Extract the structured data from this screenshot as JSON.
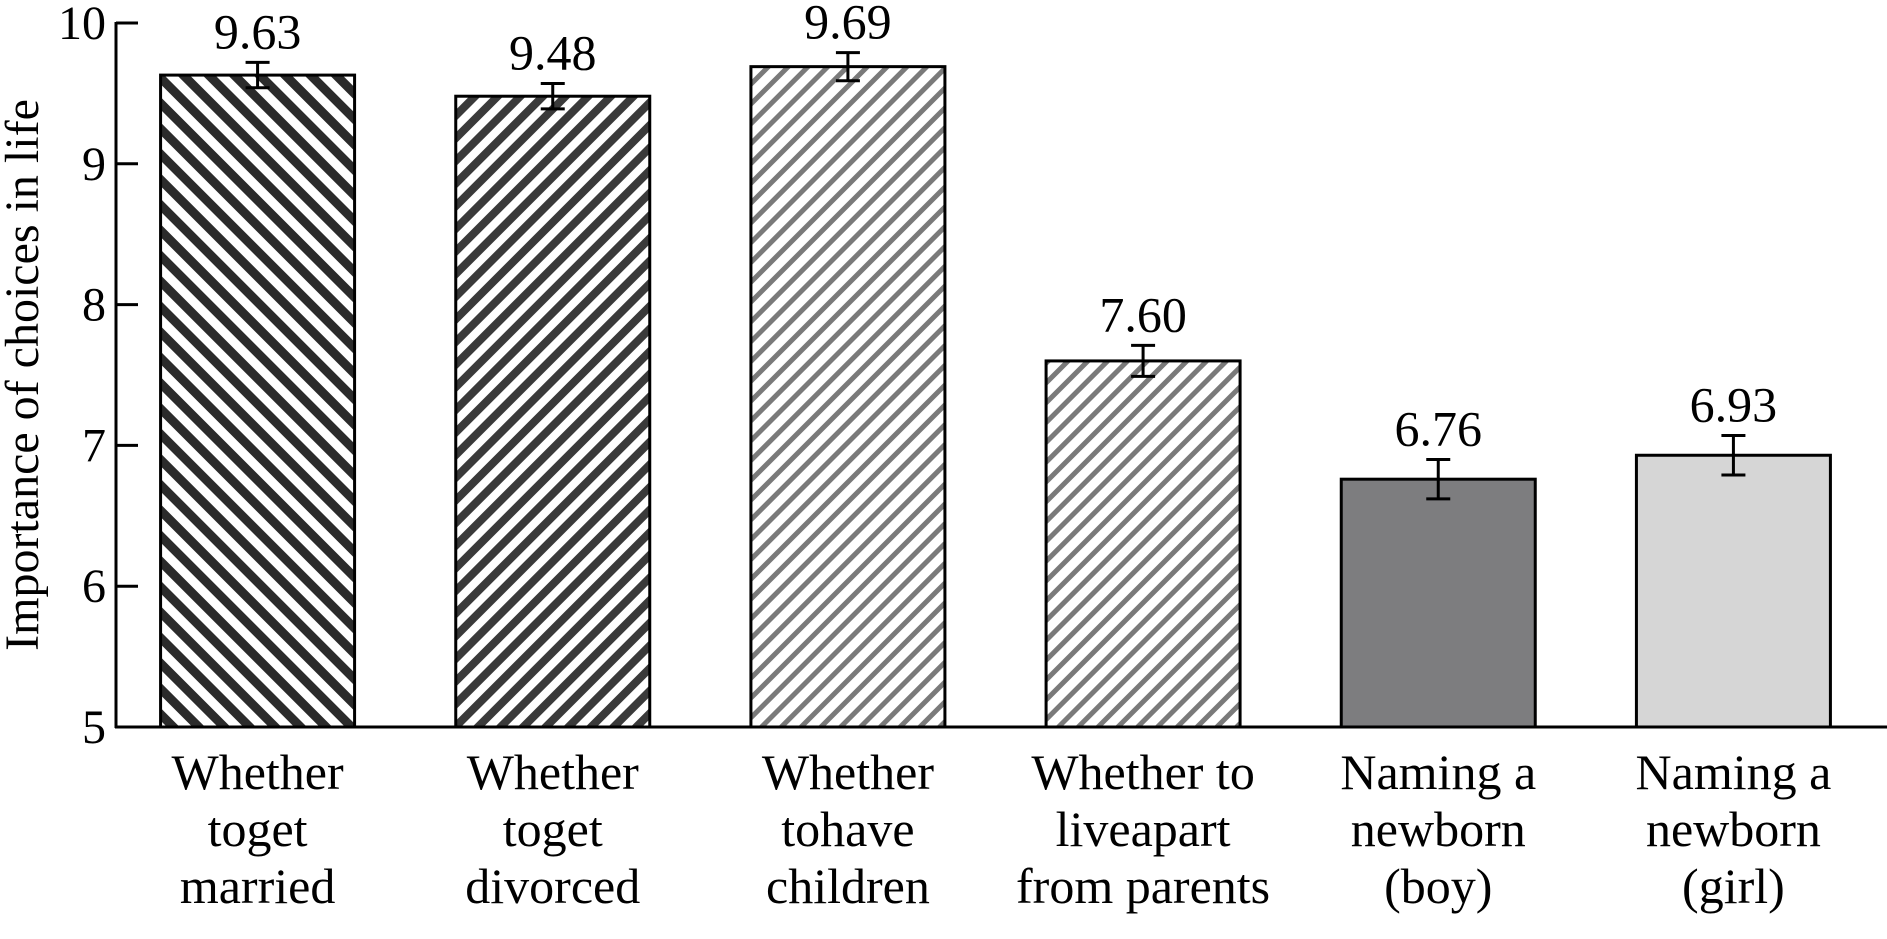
{
  "chart_data": {
    "type": "bar",
    "title": "",
    "xlabel": "",
    "ylabel": "Importance of choices in life",
    "ylim": [
      5,
      10
    ],
    "yticks": [
      "5",
      "6",
      "7",
      "8",
      "9",
      "10"
    ],
    "grid": false,
    "legend": "none",
    "categories": [
      [
        "Whether",
        "toget",
        "married"
      ],
      [
        "Whether",
        "toget",
        "divorced"
      ],
      [
        "Whether",
        "tohave",
        "children"
      ],
      [
        "Whether to",
        "liveapart",
        "from parents"
      ],
      [
        "Naming a",
        "newborn",
        "(boy)"
      ],
      [
        "Naming a",
        "newborn",
        "(girl)"
      ]
    ],
    "values": [
      9.63,
      9.48,
      9.69,
      7.6,
      6.76,
      6.93
    ],
    "value_labels": [
      "9.63",
      "9.48",
      "9.69",
      "7.60",
      "6.76",
      "6.93"
    ],
    "error": [
      0.09,
      0.09,
      0.1,
      0.11,
      0.14,
      0.14
    ],
    "fills": [
      "stripe-dense-dark",
      "stripe-dense-mid",
      "stripe-light",
      "stripe-light",
      "solid-dark",
      "solid-light"
    ],
    "colors": {
      "stripe_dark": "#2b2b2b",
      "stripe_mid": "#3a3a3a",
      "stripe_light": "#7a7a7a",
      "solid_dark": "#7d7d7f",
      "solid_light": "#d6d6d6",
      "stroke": "#000000"
    }
  }
}
